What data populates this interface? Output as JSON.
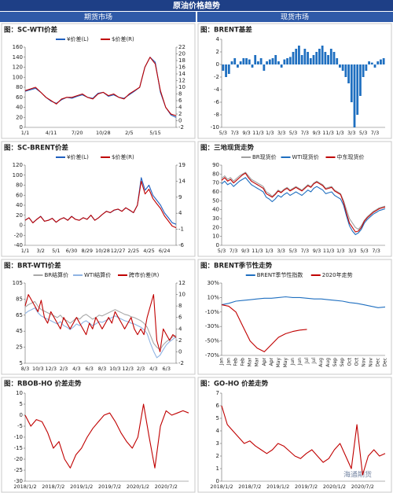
{
  "header": {
    "title": "原油价格趋势",
    "left": "期货市场",
    "right": "现货市场"
  },
  "watermark": "海通期货",
  "chart_data": [
    {
      "type": "line",
      "title": "图：SC-WTI价差",
      "categories": [
        "1/1",
        null,
        null,
        null,
        null,
        "4/11",
        null,
        null,
        null,
        null,
        "7/20",
        null,
        null,
        null,
        null,
        "10/28",
        null,
        null,
        null,
        null,
        "2/5",
        null,
        null,
        null,
        null,
        "5/15",
        null,
        null,
        null,
        null
      ],
      "ylim": [
        0,
        160
      ],
      "yticks": [
        0,
        20,
        40,
        60,
        80,
        100,
        120,
        140,
        160
      ],
      "y2lim": [
        -2,
        22
      ],
      "y2ticks": [
        -2,
        0,
        2,
        4,
        6,
        8,
        10,
        12,
        14,
        16,
        18,
        20,
        22
      ],
      "series": [
        {
          "name": "¥价差(L)",
          "color": "#1f5fbf",
          "values": [
            72,
            75,
            78,
            70,
            60,
            52,
            48,
            55,
            60,
            58,
            62,
            65,
            60,
            58,
            68,
            70,
            62,
            65,
            60,
            58,
            65,
            72,
            80,
            120,
            140,
            130,
            70,
            40,
            25,
            20
          ]
        },
        {
          "name": "$价差(R)",
          "color": "#c00000",
          "axis": "y2",
          "values": [
            9,
            9.5,
            10,
            8.5,
            7,
            6,
            5,
            6.5,
            7,
            7,
            7.5,
            8,
            7,
            6.5,
            8,
            8.5,
            7.5,
            8,
            7,
            6.5,
            8,
            9,
            10,
            16,
            19,
            17,
            9,
            4,
            2,
            1.5
          ]
        }
      ]
    },
    {
      "type": "bar",
      "title": "图：BRENT基差",
      "categories": [
        "5/3",
        null,
        null,
        null,
        "7/3",
        null,
        null,
        null,
        "9/3",
        null,
        null,
        null,
        "11/3",
        null,
        null,
        null,
        "1/3",
        null,
        null,
        null,
        "3/3",
        null,
        null,
        null,
        "5/3",
        null,
        null,
        null,
        "7/3",
        null,
        null,
        null,
        "9/3",
        null,
        null,
        null,
        "11/3",
        null,
        null,
        null,
        "1/3",
        null,
        null,
        null,
        "3/3",
        null,
        null,
        null,
        "5/3",
        null,
        null,
        null,
        "7/3",
        null,
        null,
        null
      ],
      "ylim": [
        -10,
        4
      ],
      "yticks": [
        -10,
        -8,
        -6,
        -4,
        -2,
        0,
        2,
        4
      ],
      "series": [
        {
          "color": "#1f6fc0",
          "values": [
            -1,
            -2,
            -1.5,
            0.5,
            1,
            -0.5,
            0.5,
            1,
            1,
            0.8,
            -0.5,
            1.5,
            0.5,
            1,
            -1,
            0.5,
            0.8,
            1,
            1.5,
            0.5,
            -0.5,
            0.8,
            1,
            1.2,
            2,
            2.5,
            3,
            1.5,
            2.5,
            2,
            1,
            1.5,
            2,
            2.5,
            3,
            2,
            1.5,
            2.5,
            2,
            1,
            -0.5,
            -1,
            -2,
            -3,
            -6,
            -10,
            -8,
            -5,
            -2,
            -1,
            0.5,
            0.3,
            -0.5,
            0.5,
            0.8,
            1
          ]
        }
      ]
    },
    {
      "type": "line",
      "title": "图：SC-BRENT价差",
      "categories": [
        "1/1",
        null,
        null,
        null,
        "3/2",
        null,
        null,
        null,
        "5/1",
        null,
        null,
        null,
        "6/30",
        null,
        null,
        null,
        "8/29",
        null,
        null,
        null,
        "10/28",
        null,
        null,
        null,
        "12/27",
        null,
        null,
        null,
        "2/25",
        null,
        null,
        null,
        "4/25",
        null,
        null,
        null,
        "6/24",
        null,
        null,
        null
      ],
      "ylim": [
        -40,
        120
      ],
      "yticks": [
        -40,
        -20,
        0,
        20,
        40,
        60,
        80,
        100,
        120
      ],
      "y2lim": [
        -6,
        19
      ],
      "y2ticks": [
        -6,
        -1,
        4,
        9,
        14,
        19
      ],
      "series": [
        {
          "name": "¥价差(L)",
          "color": "#1f5fbf",
          "values": [
            10,
            15,
            5,
            12,
            18,
            8,
            10,
            14,
            6,
            12,
            15,
            10,
            18,
            12,
            10,
            15,
            12,
            20,
            10,
            15,
            22,
            28,
            25,
            30,
            32,
            28,
            35,
            30,
            25,
            40,
            95,
            70,
            80,
            60,
            50,
            40,
            25,
            15,
            5,
            2
          ]
        },
        {
          "name": "$价差(R)",
          "color": "#c00000",
          "axis": "y2",
          "values": [
            1.8,
            2.6,
            1.0,
            2.1,
            3.0,
            1.5,
            1.8,
            2.4,
            1.2,
            2.1,
            2.6,
            1.8,
            3.0,
            2.1,
            1.8,
            2.6,
            2.1,
            3.4,
            1.8,
            2.6,
            3.7,
            4.6,
            4.2,
            5,
            5.3,
            4.6,
            5.7,
            5,
            4.2,
            6.5,
            14,
            10,
            11.5,
            8.6,
            7,
            5.5,
            3.2,
            1.6,
            0,
            -0.5
          ]
        }
      ]
    },
    {
      "type": "line",
      "title": "图：三地现货走势",
      "categories": [
        "5/3",
        null,
        null,
        null,
        "7/3",
        null,
        null,
        null,
        "9/3",
        null,
        null,
        null,
        "11/3",
        null,
        null,
        null,
        "1/3",
        null,
        null,
        null,
        "3/3",
        null,
        null,
        null,
        "5/3",
        null,
        null,
        null,
        "7/3",
        null,
        null,
        null,
        "9/3",
        null,
        null,
        null,
        "11/3",
        null,
        null,
        null,
        "1/3",
        null,
        null,
        null,
        "3/3",
        null,
        null,
        null,
        "5/3",
        null,
        null,
        null,
        "7/3",
        null,
        null,
        null
      ],
      "ylim": [
        0,
        90
      ],
      "yticks": [
        0,
        10,
        20,
        30,
        40,
        50,
        60,
        70,
        80,
        90
      ],
      "series": [
        {
          "name": "BR现货价",
          "color": "#a0a0a0",
          "values": [
            75,
            78,
            74,
            76,
            72,
            75,
            78,
            80,
            82,
            78,
            74,
            72,
            70,
            68,
            66,
            60,
            58,
            55,
            58,
            62,
            60,
            63,
            65,
            62,
            64,
            66,
            64,
            62,
            65,
            68,
            66,
            70,
            72,
            70,
            68,
            64,
            65,
            66,
            62,
            60,
            58,
            50,
            40,
            30,
            25,
            20,
            18,
            22,
            28,
            32,
            35,
            38,
            40,
            42,
            43,
            44
          ]
        },
        {
          "name": "WTI现货价",
          "color": "#1f6fc0",
          "values": [
            69,
            72,
            68,
            70,
            66,
            69,
            72,
            74,
            76,
            72,
            68,
            66,
            64,
            62,
            60,
            54,
            52,
            49,
            52,
            56,
            54,
            57,
            59,
            56,
            58,
            60,
            58,
            56,
            59,
            62,
            60,
            64,
            66,
            64,
            62,
            58,
            59,
            60,
            56,
            54,
            52,
            45,
            33,
            22,
            16,
            12,
            14,
            18,
            25,
            29,
            32,
            35,
            37,
            39,
            40,
            41
          ]
        },
        {
          "name": "中东现货价",
          "color": "#c00000",
          "values": [
            73,
            76,
            72,
            74,
            70,
            73,
            76,
            79,
            81,
            76,
            72,
            70,
            68,
            66,
            64,
            58,
            56,
            54,
            57,
            61,
            59,
            62,
            64,
            61,
            63,
            65,
            63,
            61,
            64,
            67,
            65,
            69,
            71,
            69,
            67,
            63,
            64,
            65,
            61,
            59,
            57,
            48,
            36,
            25,
            20,
            15,
            16,
            20,
            27,
            31,
            34,
            37,
            39,
            41,
            42,
            43
          ]
        }
      ]
    },
    {
      "type": "line",
      "title": "图：BRT-WTI价差",
      "categories": [
        "8/3",
        null,
        null,
        null,
        "10/3",
        null,
        null,
        null,
        "12/3",
        null,
        null,
        null,
        "2/3",
        null,
        null,
        null,
        "4/3",
        null,
        null,
        null,
        "6/3",
        null,
        null,
        null,
        "8/3",
        null,
        null,
        null,
        "10/3",
        null,
        null,
        null,
        "12/3",
        null,
        null,
        null,
        "2/3",
        null,
        null,
        null,
        "4/3",
        null,
        null,
        null,
        "6/3",
        null,
        null,
        null
      ],
      "ylim": [
        5,
        105
      ],
      "yticks": [
        5,
        25,
        45,
        65,
        85,
        105
      ],
      "y2lim": [
        -2,
        12
      ],
      "y2ticks": [
        -2,
        0,
        2,
        4,
        6,
        8,
        10,
        12
      ],
      "series": [
        {
          "name": "BR结算价",
          "color": "#a8a8a8",
          "values": [
            75,
            78,
            80,
            82,
            76,
            72,
            70,
            68,
            66,
            64,
            62,
            65,
            60,
            58,
            55,
            58,
            62,
            60,
            64,
            66,
            63,
            60,
            62,
            65,
            64,
            66,
            68,
            70,
            72,
            70,
            68,
            66,
            65,
            63,
            62,
            60,
            58,
            55,
            50,
            40,
            30,
            25,
            22,
            28,
            32,
            35,
            38,
            40
          ]
        },
        {
          "name": "WTI结算价",
          "color": "#8fb4e3",
          "values": [
            67,
            70,
            72,
            74,
            68,
            64,
            62,
            60,
            58,
            56,
            54,
            57,
            52,
            50,
            47,
            50,
            54,
            52,
            56,
            58,
            55,
            52,
            54,
            57,
            56,
            58,
            60,
            62,
            64,
            62,
            60,
            58,
            57,
            55,
            54,
            52,
            50,
            47,
            42,
            30,
            20,
            12,
            15,
            22,
            28,
            32,
            35,
            38
          ]
        },
        {
          "name": "跨市价差(R)",
          "color": "#c00000",
          "axis": "y2",
          "values": [
            8,
            10,
            9,
            8,
            7,
            9,
            6,
            5,
            7,
            6,
            5,
            4,
            6,
            5,
            4,
            5,
            6,
            5,
            4,
            3,
            5,
            4,
            6,
            5,
            4,
            5,
            6,
            5,
            7,
            6,
            5,
            4,
            5,
            6,
            4,
            3,
            4,
            3,
            6,
            8,
            10,
            2,
            0,
            4,
            3,
            2,
            3,
            2.5
          ]
        }
      ]
    },
    {
      "type": "line",
      "title": "图：BRENT季节性走势",
      "categories": [
        "Jan",
        "Jan",
        "Feb",
        "Feb",
        "Mar",
        "Mar",
        "Apr",
        "Apr",
        "May",
        "May",
        "Jun",
        "Jun",
        "Jul",
        "Jul",
        "Aug",
        "Aug",
        "Sep",
        "Sep",
        "Oct",
        "Oct",
        "Nov",
        "Nov",
        "Dec",
        "Dec"
      ],
      "ylim": [
        -70,
        30
      ],
      "yticks": [
        {
          "value": -70,
          "label": "-70%"
        },
        {
          "value": -50,
          "label": "-50%"
        },
        {
          "value": -30,
          "label": "-30%"
        },
        {
          "value": -10,
          "label": "-10%"
        },
        {
          "value": 10,
          "label": "10%"
        },
        {
          "value": 30,
          "label": "30%"
        }
      ],
      "series": [
        {
          "name": "BRENT季节性指数",
          "color": "#1f6fc0",
          "values": [
            0,
            2,
            5,
            6,
            7,
            8,
            9,
            9,
            10,
            11,
            10,
            10,
            9,
            8,
            8,
            7,
            6,
            5,
            3,
            2,
            0,
            -2,
            -4,
            -3
          ]
        },
        {
          "name": "2020年走势",
          "color": "#c00000",
          "values": [
            0,
            -2,
            -10,
            -30,
            -50,
            -60,
            -65,
            -55,
            -45,
            -40,
            -37,
            -35,
            -34,
            null,
            null,
            null,
            null,
            null,
            null,
            null,
            null,
            null,
            null,
            null
          ]
        }
      ]
    },
    {
      "type": "line",
      "title": "图：RBOB-HO 价差走势",
      "categories": [
        "2018/1/2",
        null,
        null,
        null,
        null,
        "2018/7/2",
        null,
        null,
        null,
        null,
        "2019/1/2",
        null,
        null,
        null,
        null,
        "2019/7/2",
        null,
        null,
        null,
        null,
        "2020/1/2",
        null,
        null,
        null,
        null,
        "2020/7/2",
        null,
        null,
        null,
        null
      ],
      "ylim": [
        -30,
        10
      ],
      "yticks": [
        -30,
        -25,
        -20,
        -15,
        -10,
        -5,
        0,
        5,
        10
      ],
      "series": [
        {
          "color": "#c00000",
          "values": [
            0,
            -5,
            -2,
            -3,
            -8,
            -15,
            -12,
            -20,
            -24,
            -18,
            -15,
            -10,
            -6,
            -3,
            0,
            1,
            -3,
            -8,
            -12,
            -15,
            -10,
            5,
            -10,
            -24,
            -5,
            2,
            0,
            1,
            2,
            1
          ]
        }
      ]
    },
    {
      "type": "line",
      "title": "图：GO-HO 价差走势",
      "categories": [
        "2018/1/2",
        null,
        null,
        null,
        null,
        "2018/7/2",
        null,
        null,
        null,
        null,
        "2019/1/2",
        null,
        null,
        null,
        null,
        "2019/7/2",
        null,
        null,
        null,
        null,
        "2020/1/2",
        null,
        null,
        null,
        null,
        "2020/7/2",
        null,
        null,
        null,
        null
      ],
      "ylim": [
        0,
        7
      ],
      "yticks": [
        0,
        1,
        2,
        3,
        4,
        5,
        6,
        7
      ],
      "series": [
        {
          "color": "#c00000",
          "values": [
            6,
            4.5,
            4,
            3.5,
            3,
            3.2,
            2.8,
            2.5,
            2.2,
            2.5,
            3,
            2.8,
            2.4,
            2,
            1.8,
            2.2,
            2.5,
            2,
            1.5,
            1.8,
            2.5,
            3,
            2,
            1,
            4.5,
            0.5,
            2,
            2.5,
            2,
            2.2
          ]
        }
      ]
    }
  ]
}
